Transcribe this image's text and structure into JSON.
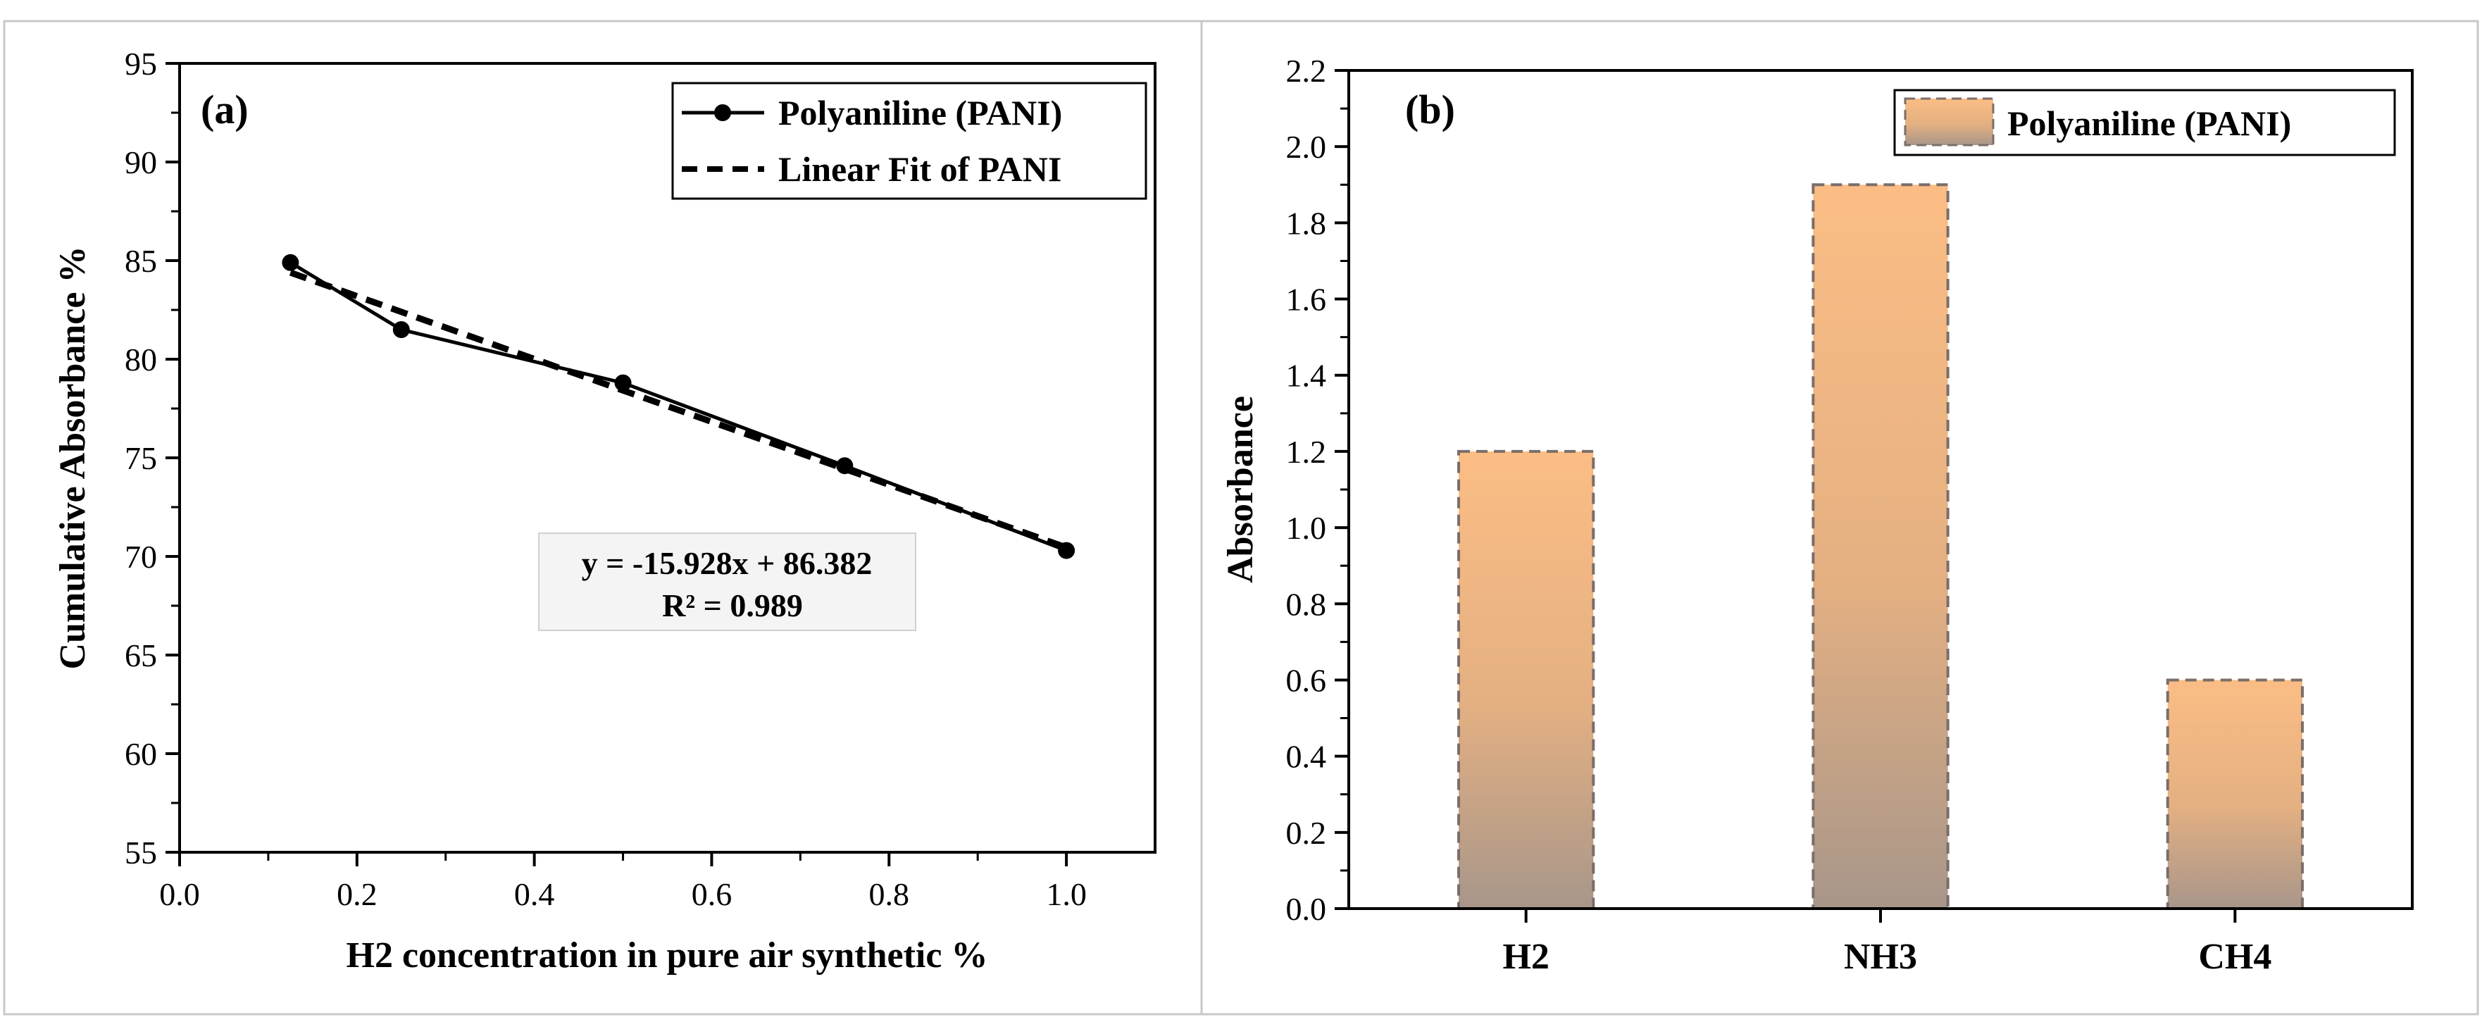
{
  "chart_data": [
    {
      "type": "line",
      "panel_label": "(a)",
      "xlabel": "H2 concentration in pure air synthetic %",
      "ylabel": "Cumulative Absorbance %",
      "xlim": [
        0.0,
        1.1
      ],
      "ylim": [
        55,
        95
      ],
      "x_ticks": [
        "0.0",
        "0.2",
        "0.4",
        "0.6",
        "0.8",
        "1.0"
      ],
      "y_ticks": [
        "55",
        "60",
        "65",
        "70",
        "75",
        "80",
        "85",
        "90",
        "95"
      ],
      "series": [
        {
          "name": "Polyaniline (PANI)",
          "style": "solid-line-circle-markers",
          "x": [
            0.125,
            0.25,
            0.5,
            0.75,
            1.0
          ],
          "y": [
            84.9,
            81.5,
            78.8,
            74.6,
            70.3
          ]
        },
        {
          "name": "Linear Fit of PANI",
          "style": "dashed-line",
          "slope": -15.928,
          "intercept": 86.382,
          "x_range": [
            0.125,
            1.0
          ]
        }
      ],
      "legend_position": "top-right",
      "annotation": {
        "line1": "y = -15.928x + 86.382",
        "line2": "R² = 0.989"
      }
    },
    {
      "type": "bar",
      "panel_label": "(b)",
      "xlabel": "",
      "ylabel": "Absorbance",
      "ylim": [
        0.0,
        2.2
      ],
      "y_ticks": [
        "0.0",
        "0.2",
        "0.4",
        "0.6",
        "0.8",
        "1.0",
        "1.2",
        "1.4",
        "1.6",
        "1.8",
        "2.0",
        "2.2"
      ],
      "categories": [
        "H2",
        "NH3",
        "CH4"
      ],
      "series": [
        {
          "name": "Polyaniline (PANI)",
          "values": [
            1.2,
            1.9,
            0.6
          ]
        }
      ],
      "legend_position": "top-right",
      "colors": {
        "bar_top": "#fbbd84",
        "bar_mid": "#e4b082",
        "bar_bottom": "#a8968a",
        "bar_border": "#7a6e6a"
      }
    }
  ]
}
